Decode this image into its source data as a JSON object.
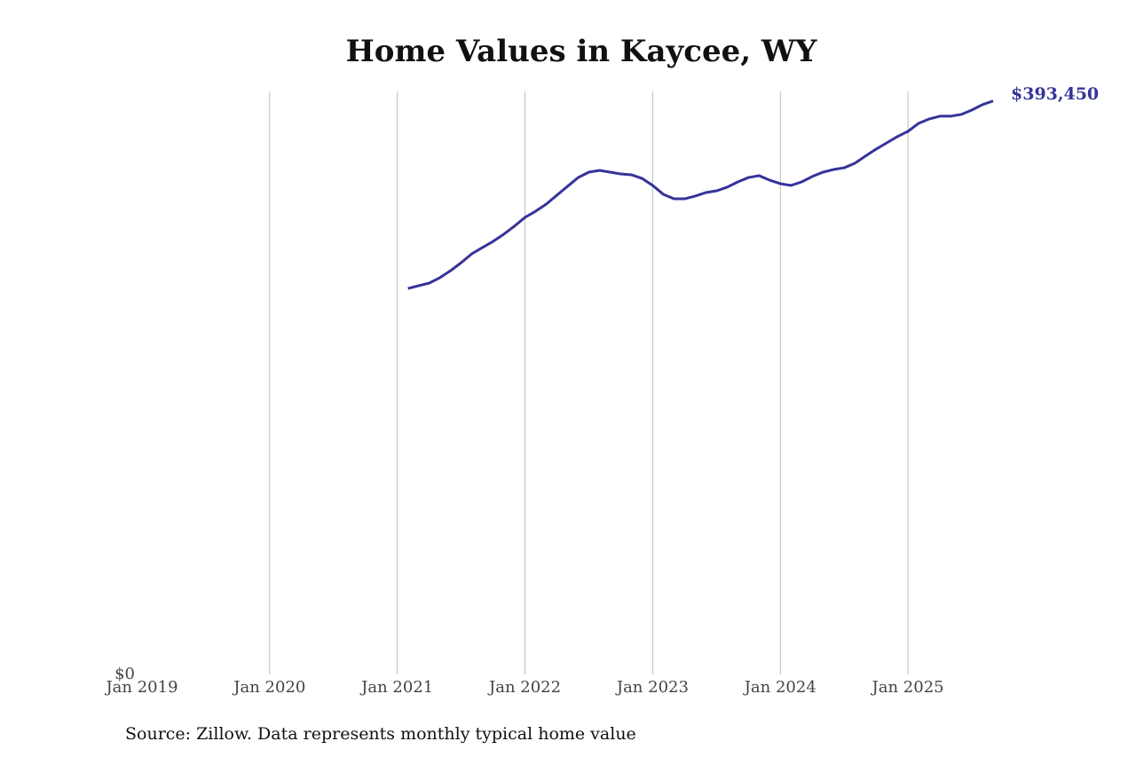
{
  "chart_data": {
    "type": "line",
    "title": "Home Values in Kaycee, WY",
    "source": "Source: Zillow. Data represents monthly typical home value",
    "x": [
      "2021-02",
      "2021-03",
      "2021-04",
      "2021-05",
      "2021-06",
      "2021-07",
      "2021-08",
      "2021-09",
      "2021-10",
      "2021-11",
      "2021-12",
      "2022-01",
      "2022-02",
      "2022-03",
      "2022-04",
      "2022-05",
      "2022-06",
      "2022-07",
      "2022-08",
      "2022-09",
      "2022-10",
      "2022-11",
      "2022-12",
      "2023-01",
      "2023-02",
      "2023-03",
      "2023-04",
      "2023-05",
      "2023-06",
      "2023-07",
      "2023-08",
      "2023-09",
      "2023-10",
      "2023-11",
      "2023-12",
      "2024-01",
      "2024-02",
      "2024-03",
      "2024-04",
      "2024-05",
      "2024-06",
      "2024-07",
      "2024-08",
      "2024-09",
      "2024-10",
      "2024-11",
      "2024-12",
      "2025-01",
      "2025-02",
      "2025-03",
      "2025-04",
      "2025-05",
      "2025-06",
      "2025-07",
      "2025-08",
      "2025-09"
    ],
    "series": [
      {
        "name": "Kaycee, WY",
        "color": "#35339a",
        "values": [
          264800,
          266700,
          268500,
          272200,
          277000,
          282500,
          288600,
          292900,
          297100,
          302000,
          307500,
          313600,
          317800,
          322700,
          328800,
          334900,
          340900,
          344600,
          345800,
          344600,
          343400,
          342800,
          340300,
          335500,
          329400,
          326300,
          326300,
          328200,
          330600,
          331800,
          334300,
          337900,
          340900,
          342200,
          339100,
          336700,
          335500,
          337900,
          341600,
          344600,
          346400,
          347600,
          350700,
          355600,
          360400,
          364700,
          369000,
          372600,
          378100,
          381100,
          383000,
          383000,
          384200,
          387200,
          390900,
          393450
        ],
        "value_labels": [
          null,
          null,
          null,
          null,
          null,
          null,
          null,
          null,
          null,
          null,
          null,
          null,
          null,
          null,
          null,
          null,
          null,
          null,
          null,
          null,
          null,
          null,
          null,
          null,
          null,
          null,
          null,
          null,
          null,
          null,
          null,
          null,
          null,
          null,
          null,
          null,
          null,
          null,
          null,
          null,
          null,
          null,
          null,
          null,
          null,
          null,
          null,
          null,
          null,
          null,
          null,
          null,
          null,
          null,
          null,
          "$393,450"
        ]
      }
    ],
    "xlim": [
      "2019-01",
      "2025-09"
    ],
    "xticks": [
      {
        "value": "2019-01",
        "label": "Jan 2019"
      },
      {
        "value": "2020-01",
        "label": "Jan 2020"
      },
      {
        "value": "2021-01",
        "label": "Jan 2021"
      },
      {
        "value": "2022-01",
        "label": "Jan 2022"
      },
      {
        "value": "2023-01",
        "label": "Jan 2023"
      },
      {
        "value": "2024-01",
        "label": "Jan 2024"
      },
      {
        "value": "2025-01",
        "label": "Jan 2025"
      }
    ],
    "ylim": [
      0,
      400000
    ],
    "yticks": [
      {
        "value": 0,
        "label": "$0"
      }
    ],
    "grid": "x"
  }
}
